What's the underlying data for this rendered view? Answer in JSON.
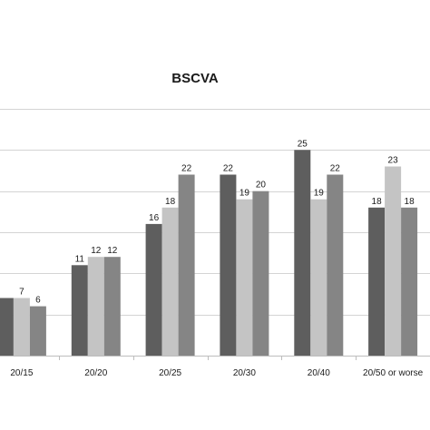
{
  "chart_data": {
    "type": "bar",
    "title": "BSCVA",
    "xlabel": "",
    "ylabel": "",
    "categories": [
      "20/15",
      "20/20",
      "20/25",
      "20/30",
      "20/40",
      "20/50 or worse"
    ],
    "series": [
      {
        "values": [
          7,
          11,
          16,
          22,
          25,
          18
        ],
        "color": "#5e5e5e"
      },
      {
        "values": [
          7,
          12,
          18,
          19,
          19,
          23
        ],
        "color": "#c4c4c4"
      },
      {
        "values": [
          6,
          12,
          22,
          20,
          22,
          18
        ],
        "color": "#858585"
      }
    ],
    "data_labels": [
      [
        "",
        "7",
        "6"
      ],
      [
        "11",
        "12",
        "12"
      ],
      [
        "16",
        "18",
        "22"
      ],
      [
        "22",
        "19",
        "20"
      ],
      [
        "25",
        "19",
        "22"
      ],
      [
        "18",
        "23",
        "18"
      ]
    ],
    "ylim": [
      0,
      30
    ],
    "grid": true,
    "legend": "none"
  }
}
